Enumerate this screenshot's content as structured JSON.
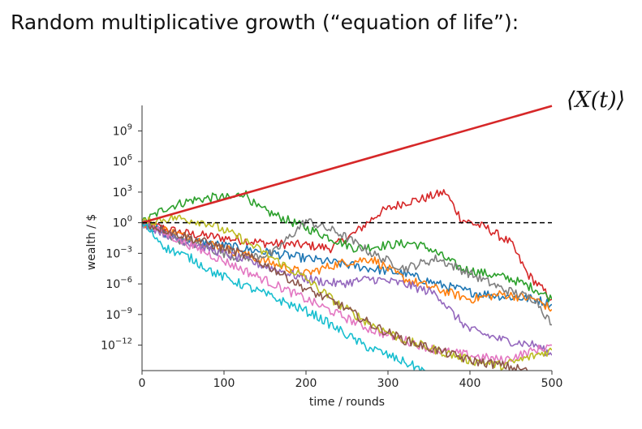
{
  "slide": {
    "title": "Random multiplicative growth (“equation of life”):"
  },
  "chart_data": {
    "type": "line",
    "title": "",
    "xlabel": "time / rounds",
    "ylabel": "wealth / $",
    "y_scale": "log10",
    "xlim": [
      0,
      500
    ],
    "ylim_log10": [
      -14.5,
      11.5
    ],
    "x_ticks": [
      0,
      100,
      200,
      300,
      400,
      500
    ],
    "x_tick_labels": [
      "0",
      "100",
      "200",
      "300",
      "400",
      "500"
    ],
    "y_ticks_log10": [
      9,
      6,
      3,
      0,
      -3,
      -6,
      -9,
      -12
    ],
    "y_tick_labels": [
      {
        "base": "10",
        "exp": "9"
      },
      {
        "base": "10",
        "exp": "6"
      },
      {
        "base": "10",
        "exp": "3"
      },
      {
        "base": "10",
        "exp": "0"
      },
      {
        "base": "10",
        "exp": "−3"
      },
      {
        "base": "10",
        "exp": "−6"
      },
      {
        "base": "10",
        "exp": "−9"
      },
      {
        "base": "10",
        "exp": "−12"
      }
    ],
    "mean_line": {
      "label": "⟨X(t)⟩",
      "x": [
        0,
        500
      ],
      "log10_y": [
        0,
        11.45
      ],
      "color": "#d62728"
    },
    "reference_line": {
      "log10_y": 0,
      "style": "dashed",
      "color": "#000000"
    },
    "series": [
      {
        "name": "trajectory-red",
        "color": "#d62728",
        "x": [
          0,
          50,
          100,
          150,
          200,
          230,
          260,
          290,
          320,
          340,
          370,
          390,
          420,
          450,
          470,
          500
        ],
        "log10_y": [
          0,
          -1.0,
          -1.5,
          -2.0,
          -2.2,
          -2.5,
          -1.0,
          1.0,
          2.0,
          2.3,
          3.0,
          0.3,
          -0.5,
          -2.0,
          -5.0,
          -7.5
        ]
      },
      {
        "name": "trajectory-green",
        "color": "#2ca02c",
        "x": [
          0,
          30,
          60,
          90,
          110,
          125,
          140,
          170,
          200,
          230,
          260,
          300,
          330,
          350,
          370,
          390,
          420,
          450,
          480,
          500
        ],
        "log10_y": [
          0,
          1.5,
          2.2,
          2.5,
          2.4,
          3.0,
          1.5,
          0.5,
          -0.5,
          -1.5,
          -2.5,
          -2.2,
          -2.0,
          -2.5,
          -3.5,
          -4.5,
          -5.0,
          -5.5,
          -6.5,
          -7.5
        ]
      },
      {
        "name": "trajectory-blue",
        "color": "#1f77b4",
        "x": [
          0,
          40,
          80,
          120,
          160,
          200,
          240,
          280,
          320,
          360,
          400,
          440,
          480,
          500
        ],
        "log10_y": [
          0,
          -1.5,
          -2.0,
          -2.5,
          -3.0,
          -3.5,
          -4.0,
          -4.5,
          -5.0,
          -6.0,
          -6.8,
          -7.2,
          -7.5,
          -8.0
        ]
      },
      {
        "name": "trajectory-orange",
        "color": "#ff7f0e",
        "x": [
          0,
          40,
          80,
          120,
          160,
          200,
          240,
          280,
          320,
          360,
          400,
          440,
          480,
          500
        ],
        "log10_y": [
          0,
          -1.0,
          -2.0,
          -3.0,
          -4.0,
          -5.0,
          -4.0,
          -3.5,
          -5.5,
          -6.5,
          -7.5,
          -7.0,
          -7.5,
          -8.5
        ]
      },
      {
        "name": "trajectory-gray",
        "color": "#7f7f7f",
        "x": [
          0,
          40,
          80,
          120,
          160,
          200,
          240,
          280,
          320,
          360,
          400,
          440,
          480,
          500
        ],
        "log10_y": [
          0,
          -1.5,
          -2.5,
          -3.5,
          -3.0,
          0.2,
          -1.0,
          -3.0,
          -4.5,
          -3.5,
          -5.0,
          -6.5,
          -7.5,
          -10.0
        ]
      },
      {
        "name": "trajectory-purple",
        "color": "#9467bd",
        "x": [
          0,
          40,
          80,
          120,
          160,
          200,
          240,
          280,
          320,
          360,
          380,
          400,
          440,
          480,
          500
        ],
        "log10_y": [
          0,
          -1.5,
          -2.5,
          -3.5,
          -4.5,
          -5.5,
          -6.0,
          -5.5,
          -6.0,
          -7.0,
          -9.0,
          -10.5,
          -11.5,
          -12.0,
          -13.0
        ]
      },
      {
        "name": "trajectory-pink",
        "color": "#e377c2",
        "x": [
          0,
          40,
          80,
          120,
          160,
          200,
          240,
          280,
          320,
          360,
          400,
          440,
          480,
          500
        ],
        "log10_y": [
          0,
          -1.5,
          -3.0,
          -4.5,
          -6.0,
          -7.5,
          -9.0,
          -10.5,
          -11.5,
          -12.5,
          -13.0,
          -13.5,
          -12.5,
          -12.0
        ]
      },
      {
        "name": "trajectory-olive",
        "color": "#bcbd22",
        "x": [
          0,
          40,
          80,
          120,
          160,
          200,
          240,
          280,
          320,
          360,
          400,
          440,
          480,
          500
        ],
        "log10_y": [
          0,
          0.5,
          0.0,
          -1.5,
          -3.5,
          -5.5,
          -8.0,
          -10.0,
          -11.5,
          -12.5,
          -13.5,
          -14.0,
          -13.0,
          -12.5
        ]
      },
      {
        "name": "trajectory-brown",
        "color": "#8c564b",
        "x": [
          0,
          40,
          80,
          120,
          160,
          200,
          240,
          280,
          320,
          360,
          400,
          440,
          470
        ],
        "log10_y": [
          0,
          -1.0,
          -2.0,
          -3.0,
          -4.5,
          -6.5,
          -8.0,
          -10.0,
          -11.5,
          -12.5,
          -13.5,
          -14.0,
          -14.5
        ]
      },
      {
        "name": "trajectory-cyan",
        "color": "#17becf",
        "x": [
          0,
          30,
          60,
          90,
          120,
          150,
          180,
          210,
          240,
          270,
          300,
          330,
          345
        ],
        "log10_y": [
          0,
          -2.5,
          -3.5,
          -5.0,
          -6.0,
          -7.0,
          -8.0,
          -9.0,
          -10.5,
          -12.0,
          -13.0,
          -14.0,
          -14.5
        ]
      }
    ]
  }
}
